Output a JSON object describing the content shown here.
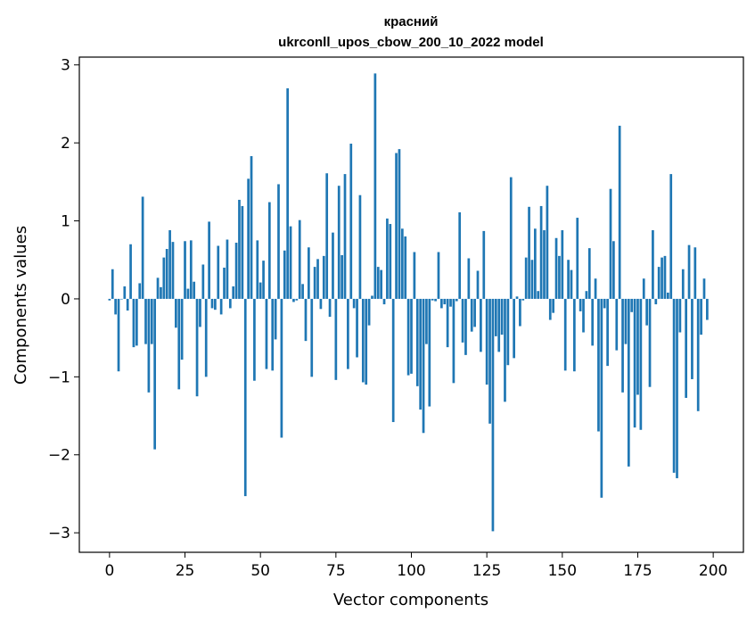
{
  "chart_data": {
    "type": "bar",
    "title": "красний",
    "subtitle": "ukrconll_upos_cbow_200_10_2022 model",
    "xlabel": "Vector components",
    "ylabel": "Components values",
    "xlim": [
      -10,
      210
    ],
    "ylim": [
      -3.25,
      3.1
    ],
    "xticks": [
      0,
      25,
      50,
      75,
      100,
      125,
      150,
      175,
      200
    ],
    "yticks": [
      -3,
      -2,
      -1,
      0,
      1,
      2,
      3
    ],
    "ytick_labels": [
      "−3",
      "−2",
      "−1",
      "0",
      "1",
      "2",
      "3"
    ],
    "grid": false,
    "bar_color": "#1f77b4",
    "values": [
      -0.02,
      0.38,
      -0.2,
      -0.93,
      0.0,
      0.16,
      -0.15,
      0.7,
      -0.62,
      -0.6,
      0.2,
      1.31,
      -0.58,
      -1.2,
      -0.58,
      -1.93,
      0.27,
      0.15,
      0.53,
      0.64,
      0.88,
      0.73,
      -0.37,
      -1.16,
      -0.78,
      0.74,
      0.13,
      0.75,
      0.22,
      -1.25,
      -0.36,
      0.44,
      -1.0,
      0.99,
      -0.12,
      -0.14,
      0.68,
      -0.2,
      0.4,
      0.76,
      -0.12,
      0.16,
      0.72,
      1.27,
      1.19,
      -2.53,
      1.54,
      1.83,
      -1.05,
      0.75,
      0.21,
      0.49,
      -0.9,
      1.24,
      -0.92,
      -0.52,
      1.47,
      -1.78,
      0.62,
      2.7,
      0.93,
      -0.04,
      -0.02,
      1.01,
      0.19,
      -0.54,
      0.66,
      -1.0,
      0.41,
      0.51,
      -0.13,
      0.55,
      1.61,
      -0.23,
      0.85,
      -1.04,
      1.45,
      0.56,
      1.6,
      -0.9,
      1.99,
      -0.12,
      -0.75,
      1.33,
      -1.07,
      -1.1,
      -0.34,
      0.04,
      2.89,
      0.41,
      0.37,
      -0.07,
      1.03,
      0.96,
      -1.58,
      1.87,
      1.92,
      0.9,
      0.8,
      -0.98,
      -0.96,
      0.6,
      -1.12,
      -1.42,
      -1.72,
      -0.58,
      -1.38,
      -0.02,
      -0.03,
      0.6,
      -0.12,
      -0.07,
      -0.62,
      -0.1,
      -1.08,
      -0.03,
      1.11,
      -0.56,
      -0.72,
      0.52,
      -0.42,
      -0.36,
      0.36,
      -0.68,
      0.87,
      -1.1,
      -1.6,
      -2.98,
      -0.48,
      -0.68,
      -0.46,
      -1.32,
      -0.85,
      1.56,
      -0.76,
      0.03,
      -0.35,
      -0.02,
      0.53,
      1.18,
      0.5,
      0.9,
      0.1,
      1.19,
      0.88,
      1.45,
      -0.27,
      -0.18,
      0.78,
      0.55,
      0.88,
      -0.92,
      0.5,
      0.37,
      -0.93,
      1.04,
      -0.16,
      -0.43,
      0.1,
      0.65,
      -0.6,
      0.26,
      -1.7,
      -2.55,
      -0.12,
      -0.86,
      1.41,
      0.74,
      -0.66,
      2.22,
      -1.2,
      -0.58,
      -2.15,
      -0.17,
      -1.65,
      -1.23,
      -1.68,
      0.26,
      -0.34,
      -1.13,
      0.88,
      -0.07,
      0.41,
      0.53,
      0.55,
      0.08,
      1.6,
      -2.23,
      -2.3,
      -0.43,
      0.38,
      -1.27,
      0.69,
      -1.03,
      0.66,
      -1.44,
      -0.46,
      0.26,
      -0.27
    ]
  }
}
